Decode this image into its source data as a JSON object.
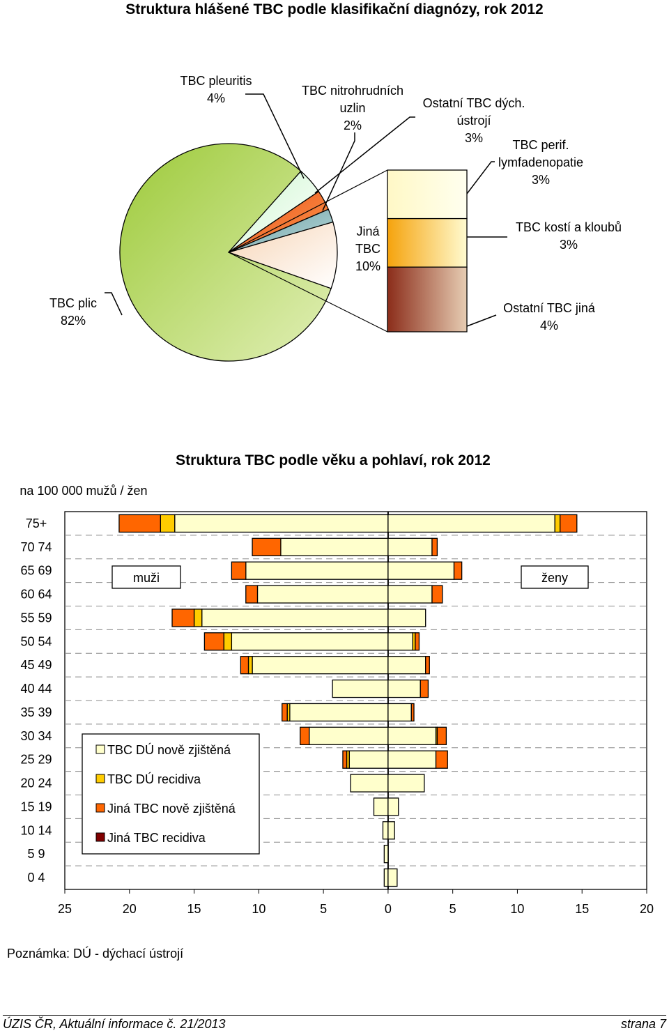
{
  "page_title": "Struktura hlášené TBC podle klasifikační diagnózy, rok 2012",
  "chart_data": [
    {
      "type": "pie",
      "title": "Struktura hlášené TBC podle klasifikační diagnózy, rok 2012",
      "slices": [
        {
          "label": "TBC plic",
          "pct_label": "82%",
          "value": 82,
          "color_light": "#e1efb6",
          "color_dark": "#9dca3a"
        },
        {
          "label": "Jiná TBC",
          "pct_label": "10%",
          "value": 10,
          "color_light": "#ffffff",
          "color_dark": "#f7d5b6"
        },
        {
          "label": "TBC nitrohrudních uzlin",
          "pct_label": "2%",
          "value": 2,
          "color_light": "#b8dbdc",
          "color_dark": "#6e9ea3"
        },
        {
          "label": "TBC pleuritis",
          "pct_label": "4%",
          "value": 4,
          "color_light": "#ffffff",
          "color_dark": "#cdf7cf"
        },
        {
          "label": "Ostatní TBC dých. ústrojí",
          "pct_label": "3%",
          "value": 3,
          "color_light": "#ff9a4c",
          "color_dark": "#e8511b"
        }
      ],
      "breakdown": {
        "of": "Jiná TBC",
        "segments": [
          {
            "label": "TBC perif. lymfadenopatie",
            "pct_label": "3%",
            "value": 3,
            "color_light": "#ffffef",
            "color_dark": "#fff8c6"
          },
          {
            "label": "TBC kostí a kloubů",
            "pct_label": "3%",
            "value": 3,
            "color_light": "#fffbd0",
            "color_dark": "#f5a30d"
          },
          {
            "label": "Ostatní TBC jiná",
            "pct_label": "4%",
            "value": 4,
            "color_light": "#e7cdb3",
            "color_dark": "#8b2d1a"
          }
        ]
      },
      "label_texts": {
        "pleuritis": [
          "TBC pleuritis",
          "4%"
        ],
        "uzliny": [
          "TBC nitrohrudních",
          "uzlin",
          "2%"
        ],
        "dychaci": [
          "Ostatní TBC dých.",
          "ústrojí",
          "3%"
        ],
        "lymfa": [
          "TBC perif.",
          "lymfadenopatie",
          "3%"
        ],
        "jina": [
          "Jiná",
          "TBC",
          "10%"
        ],
        "kosti": [
          "TBC kostí a kloubů",
          "3%"
        ],
        "plic": [
          "TBC plic",
          "82%"
        ],
        "ostatni": [
          "Ostatní TBC jiná",
          "4%"
        ]
      }
    },
    {
      "type": "bar",
      "orientation": "horizontal-population-pyramid",
      "title": "Struktura TBC podle věku a pohlaví, rok 2012",
      "ylabel": "na 100 000 mužů / žen",
      "xlim": [
        -25,
        20
      ],
      "x_ticks": [
        -25,
        -20,
        -15,
        -10,
        -5,
        0,
        5,
        10,
        15,
        20
      ],
      "x_tick_labels": [
        "25",
        "20",
        "15",
        "10",
        "5",
        "0",
        "5",
        "10",
        "15",
        "20"
      ],
      "categories": [
        "75+",
        "70 74",
        "65 69",
        "60 64",
        "55 59",
        "50 54",
        "45 49",
        "40 44",
        "35 39",
        "30 34",
        "25 29",
        "20 24",
        "15 19",
        "10 14",
        "5 9",
        "0 4"
      ],
      "series": [
        {
          "name": "TBC DÚ nově zjištěná",
          "color": "#ffffcc",
          "men": [
            16.5,
            8.3,
            11.0,
            10.1,
            14.4,
            12.1,
            10.5,
            4.3,
            7.6,
            6.1,
            3.0,
            2.9,
            1.1,
            0.4,
            0.3,
            0.3
          ],
          "women": [
            12.9,
            3.4,
            5.1,
            3.4,
            2.9,
            1.9,
            2.9,
            2.5,
            1.8,
            3.7,
            3.7,
            2.8,
            0.8,
            0.5,
            0.0,
            0.7
          ]
        },
        {
          "name": "TBC DÚ recidiva",
          "color": "#ffcc00",
          "men": [
            1.1,
            0.0,
            0.0,
            0.0,
            0.6,
            0.6,
            0.3,
            0.0,
            0.2,
            0.0,
            0.2,
            0.0,
            0.0,
            0.0,
            0.0,
            0.0
          ],
          "women": [
            0.4,
            0.0,
            0.0,
            0.0,
            0.0,
            0.2,
            0.0,
            0.0,
            0.0,
            0.1,
            0.0,
            0.0,
            0.0,
            0.0,
            0.0,
            0.0
          ]
        },
        {
          "name": "Jiná TBC nově zjištěná",
          "color": "#ff6600",
          "men": [
            3.2,
            2.2,
            1.1,
            0.9,
            1.7,
            1.5,
            0.6,
            0.0,
            0.4,
            0.7,
            0.3,
            0.0,
            0.0,
            0.0,
            0.0,
            0.0
          ],
          "women": [
            1.3,
            0.4,
            0.6,
            0.8,
            0.0,
            0.3,
            0.3,
            0.6,
            0.2,
            0.7,
            0.9,
            0.0,
            0.0,
            0.0,
            0.0,
            0.0
          ]
        },
        {
          "name": "Jiná TBC recidiva",
          "color": "#800000",
          "men": [
            0,
            0,
            0,
            0,
            0,
            0,
            0,
            0,
            0,
            0,
            0,
            0,
            0,
            0,
            0,
            0
          ],
          "women": [
            0,
            0,
            0,
            0,
            0,
            0,
            0,
            0,
            0,
            0,
            0,
            0,
            0,
            0,
            0,
            0
          ]
        }
      ],
      "panel_labels": {
        "men": "muži",
        "women": "ženy"
      },
      "legend_placement": "bottom-left",
      "grid": "dashed-horizontal"
    }
  ],
  "note": "Poznámka: DÚ - dýchací ústrojí",
  "footer": {
    "left": "ÚZIS ČR, Aktuální informace č. 21/2013",
    "right": "strana 7"
  }
}
